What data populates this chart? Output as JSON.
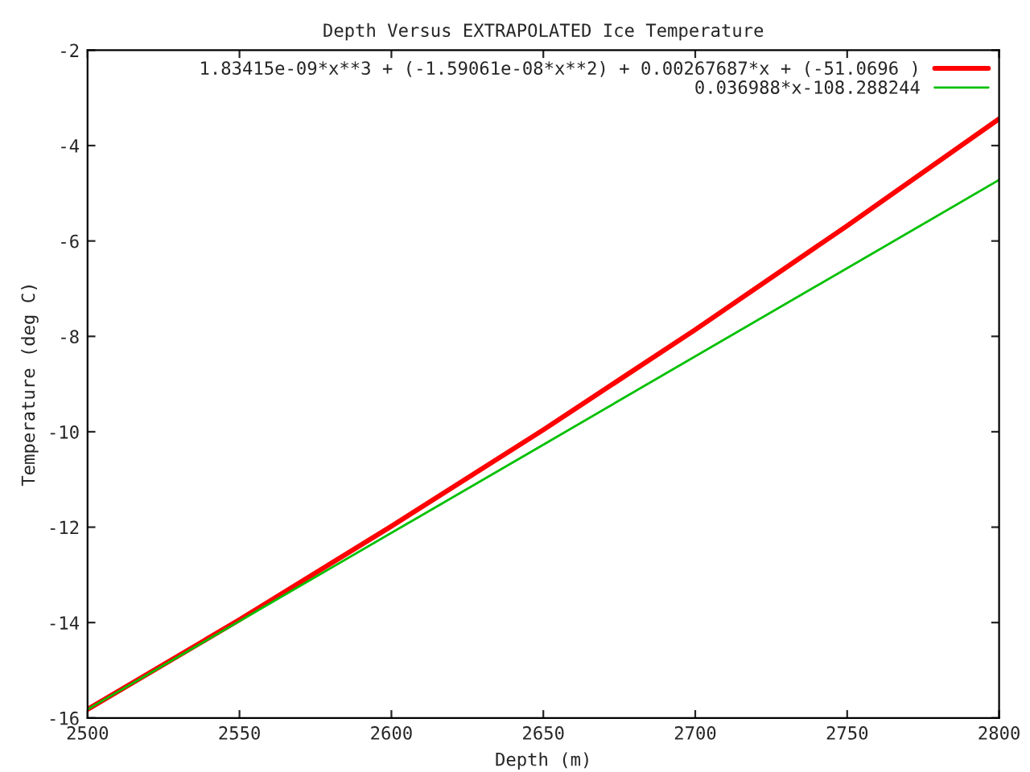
{
  "chart_data": {
    "type": "line",
    "title": "Depth Versus EXTRAPOLATED Ice Temperature",
    "xlabel": "Depth (m)",
    "ylabel": "Temperature (deg C)",
    "series": [
      {
        "name": "1.83415e-09*x**3 + (-1.59061e-08*x**2) + 0.00267687*x + (-51.0696 )",
        "color": "#ff0000",
        "x": [
          2500,
          2550,
          2600,
          2650,
          2700,
          2750,
          2800
        ],
        "values": [
          -15.82,
          -13.94,
          -11.98,
          -9.96,
          -7.86,
          -5.68,
          -3.44
        ]
      },
      {
        "name": "0.036988*x-108.288244",
        "color": "#00c000",
        "x": [
          2500,
          2650,
          2800
        ],
        "values": [
          -15.82,
          -10.27,
          -4.72
        ]
      }
    ],
    "xlim": [
      2500,
      2800
    ],
    "xticks": [
      2500,
      2550,
      2600,
      2650,
      2700,
      2750,
      2800
    ],
    "ylim": [
      -16,
      -2
    ],
    "yticks": [
      -16,
      -14,
      -12,
      -10,
      -8,
      -6,
      -4,
      -2
    ],
    "grid": false,
    "legend": "top right",
    "marker": "none",
    "line_style": "solid"
  }
}
